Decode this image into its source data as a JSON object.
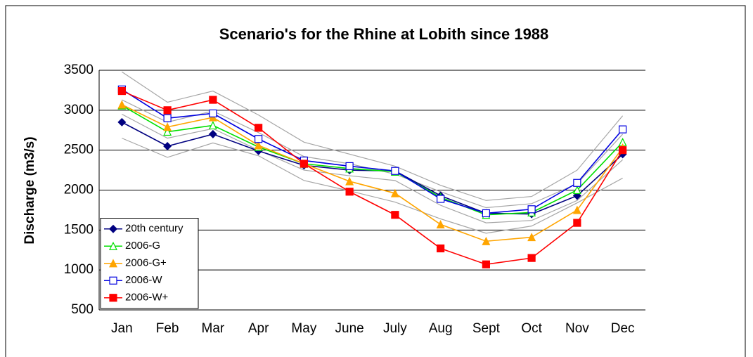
{
  "chart_data": {
    "type": "line",
    "title": "Scenario's for the Rhine at Lobith since 1988",
    "y_label": "Discharge (m3/s)",
    "categories": [
      "Jan",
      "Feb",
      "Mar",
      "Apr",
      "May",
      "June",
      "July",
      "Aug",
      "Sept",
      "Oct",
      "Nov",
      "Dec"
    ],
    "ylim": [
      500,
      3500
    ],
    "yticks": [
      500,
      1000,
      1500,
      2000,
      2500,
      3000,
      3500
    ],
    "grid": true,
    "legend": "bottom-left",
    "series": [
      {
        "color": "#a6a6a6",
        "values": [
          3480,
          3100,
          3240,
          2940,
          2600,
          2450,
          2300,
          2060,
          1870,
          1920,
          2250,
          2930
        ]
      },
      {
        "color": "#a6a6a6",
        "values": [
          3130,
          2850,
          2990,
          2720,
          2420,
          2330,
          2200,
          1980,
          1780,
          1830,
          2080,
          2700
        ]
      },
      {
        "color": "#a6a6a6",
        "values": [
          2950,
          2650,
          2770,
          2500,
          2250,
          2180,
          2120,
          1810,
          1590,
          1620,
          1870,
          2380
        ]
      },
      {
        "color": "#a6a6a6",
        "values": [
          2650,
          2410,
          2590,
          2430,
          2120,
          1990,
          1850,
          1640,
          1460,
          1550,
          1840,
          2150
        ]
      },
      {
        "name": "20th century",
        "color": "#000080",
        "marker": "diamond",
        "values": [
          2850,
          2550,
          2700,
          2490,
          2310,
          2250,
          2240,
          1930,
          1710,
          1700,
          1930,
          2450
        ]
      },
      {
        "name": "2006-G",
        "color": "#00e000",
        "marker": "triangle-open",
        "values": [
          3060,
          2730,
          2810,
          2540,
          2330,
          2270,
          2230,
          1910,
          1690,
          1720,
          2000,
          2600
        ]
      },
      {
        "name": "2006-G+",
        "color": "#ffa500",
        "marker": "triangle",
        "values": [
          3070,
          2790,
          2910,
          2560,
          2330,
          2110,
          1960,
          1570,
          1360,
          1410,
          1750,
          2530
        ]
      },
      {
        "name": "2006-W",
        "color": "#0000e0",
        "marker": "square-open",
        "values": [
          3260,
          2900,
          2960,
          2640,
          2370,
          2300,
          2240,
          1890,
          1710,
          1760,
          2090,
          2760
        ]
      },
      {
        "name": "2006-W+",
        "color": "#ff0000",
        "marker": "square",
        "values": [
          3240,
          3000,
          3130,
          2780,
          2330,
          1980,
          1690,
          1270,
          1070,
          1150,
          1590,
          2500
        ]
      }
    ]
  }
}
